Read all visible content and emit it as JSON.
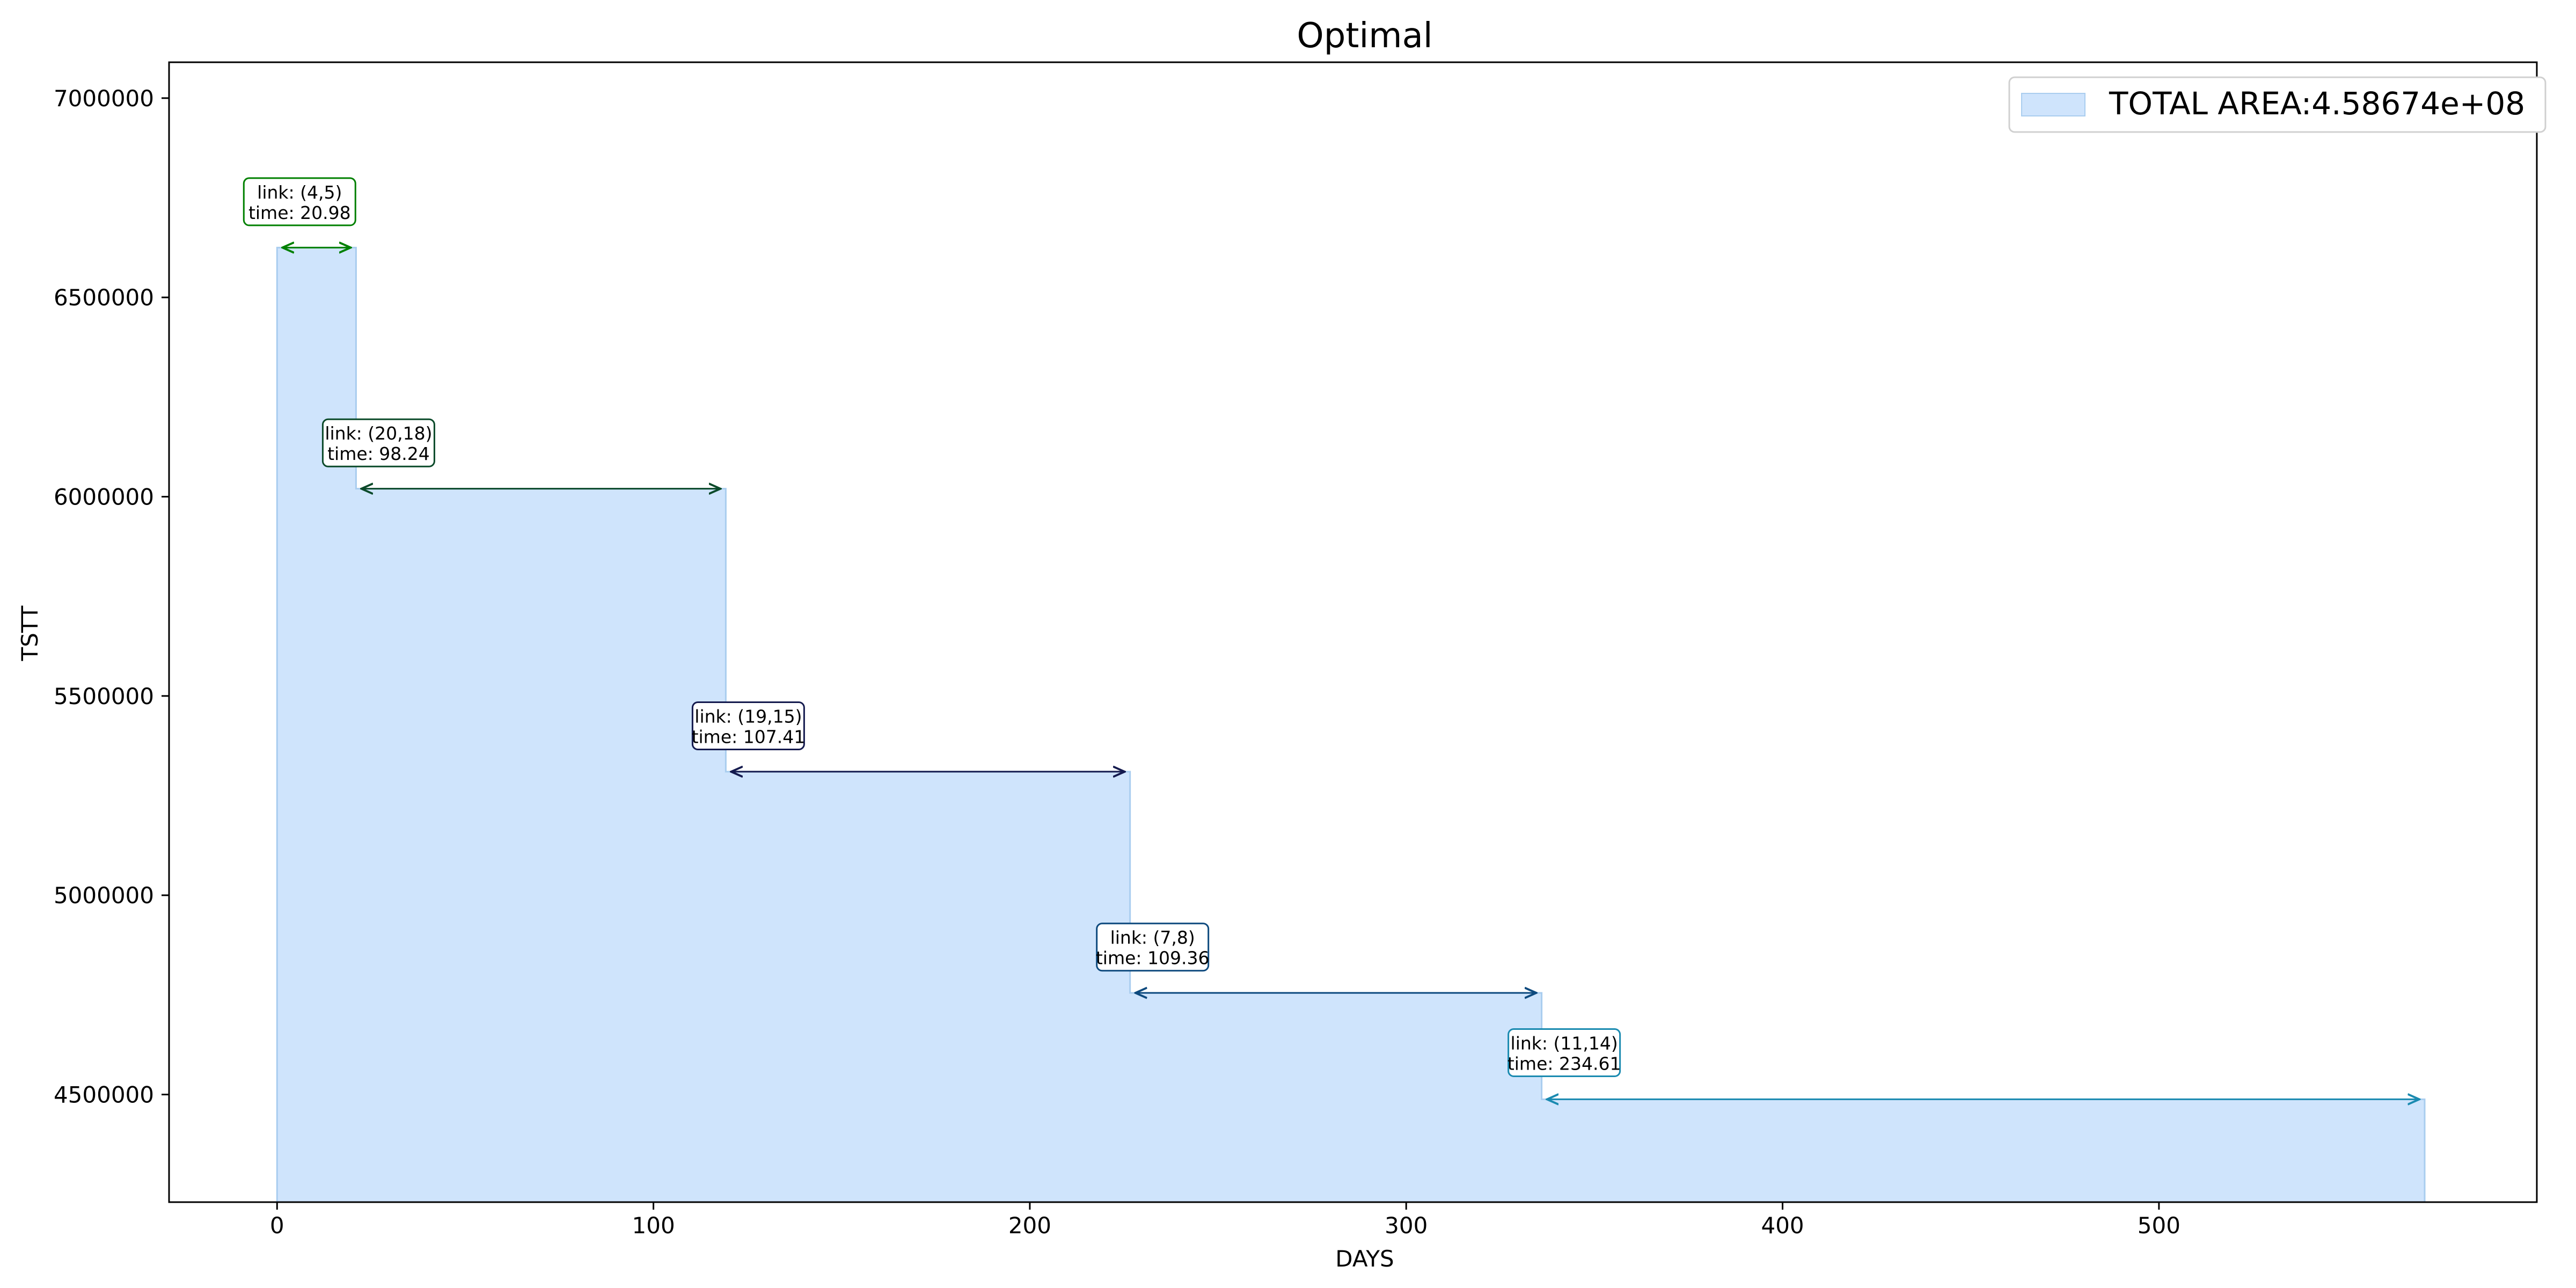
{
  "chart_data": {
    "type": "area",
    "title": "Optimal",
    "xlabel": "DAYS",
    "ylabel": "TSTT",
    "xlim": [
      -28.7,
      600.4
    ],
    "ylim": [
      4230000,
      7090000
    ],
    "x_ticks": [
      0,
      100,
      200,
      300,
      400,
      500
    ],
    "y_ticks": [
      4500000,
      5000000,
      5500000,
      6000000,
      6500000,
      7000000
    ],
    "grid": false,
    "legend_position": "top-right",
    "series": [
      {
        "name": "TOTAL AREA:4.58674e+08",
        "color": "#cfe4fc",
        "edge_color": "#a9cdef",
        "steps": [
          {
            "x_start": 0,
            "x_end": 20.98,
            "y": 6625000
          },
          {
            "x_start": 20.98,
            "x_end": 119.22,
            "y": 6020000
          },
          {
            "x_start": 119.22,
            "x_end": 226.63,
            "y": 5310000
          },
          {
            "x_start": 226.63,
            "x_end": 335.99,
            "y": 4755000
          },
          {
            "x_start": 335.99,
            "x_end": 570.6,
            "y": 4488000
          }
        ]
      }
    ],
    "annotations": [
      {
        "link": "link: (4,5)",
        "time": "time: 20.98",
        "x_start": 0,
        "x_end": 20.98,
        "y": 6625000,
        "label_y": 6740000,
        "color": "#008000"
      },
      {
        "link": "link: (20,18)",
        "time": "time: 98.24",
        "x_start": 20.98,
        "x_end": 119.22,
        "y": 6020000,
        "label_y": 6135000,
        "color": "#0b4a2a"
      },
      {
        "link": "link: (19,15)",
        "time": "time: 107.41",
        "x_start": 119.22,
        "x_end": 226.63,
        "y": 5310000,
        "label_y": 5425000,
        "color": "#141a4e"
      },
      {
        "link": "link: (7,8)",
        "time": "time: 109.36",
        "x_start": 226.63,
        "x_end": 335.99,
        "y": 4755000,
        "label_y": 4870000,
        "color": "#0e4a7e"
      },
      {
        "link": "link: (11,14)",
        "time": "time: 234.61",
        "x_start": 335.99,
        "x_end": 570.6,
        "y": 4488000,
        "label_y": 4605000,
        "color": "#1a8ab0"
      }
    ]
  }
}
